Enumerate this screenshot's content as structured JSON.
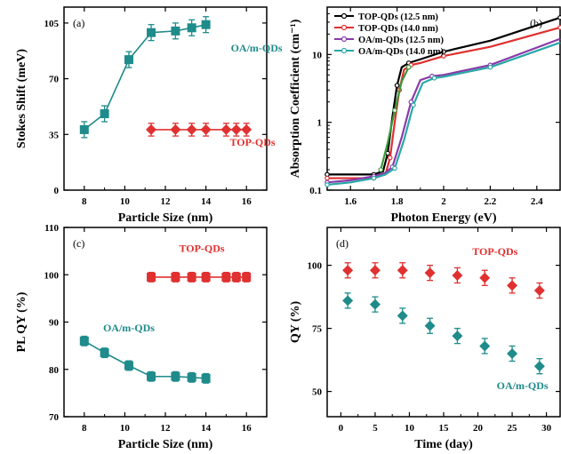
{
  "colors": {
    "red": "#e03030",
    "teal": "#1f8b8b",
    "black": "#000000",
    "green": "#3a9a3a",
    "purple": "#8a3aa8",
    "cyan": "#2aa7a7"
  },
  "chart_data": [
    {
      "id": "a",
      "type": "scatter",
      "panel_label": "(a)",
      "xlabel": "Particle Size (nm)",
      "ylabel": "Stokes Shift (meV)",
      "xlim": [
        7,
        17
      ],
      "ylim": [
        0,
        115
      ],
      "xticks": [
        8,
        10,
        12,
        14,
        16
      ],
      "yticks": [
        0,
        35,
        70,
        105
      ],
      "series": [
        {
          "name": "OA/m-QDs",
          "color": "teal",
          "marker": "square",
          "connected": true,
          "x": [
            8,
            9,
            10.2,
            11.3,
            12.5,
            13.3,
            14
          ],
          "y": [
            38,
            48,
            82,
            99,
            100,
            102,
            104
          ],
          "err": [
            5,
            5,
            5,
            5,
            5,
            5,
            5
          ]
        },
        {
          "name": "TOP-QDs",
          "color": "red",
          "marker": "diamond",
          "connected": true,
          "x": [
            11.3,
            12.5,
            13.3,
            14,
            15,
            15.5,
            16
          ],
          "y": [
            38,
            38,
            38,
            38,
            38,
            38,
            38
          ],
          "err": [
            4,
            4,
            4,
            4,
            4,
            4,
            4
          ]
        }
      ],
      "annotations": [
        {
          "text": "OA/m-QDs",
          "color": "teal",
          "x": 16.5,
          "y": 87
        },
        {
          "text": "TOP-QDs",
          "color": "red",
          "x": 16.3,
          "y": 28
        }
      ]
    },
    {
      "id": "b",
      "type": "line",
      "panel_label": "(b)",
      "xlabel": "Photon Energy (eV)",
      "ylabel": "Absorption Coefficient (cm⁻¹)",
      "xlim": [
        1.5,
        2.5
      ],
      "ylim": [
        0.1,
        50
      ],
      "log_y": true,
      "xticks": [
        1.6,
        1.8,
        2.0,
        2.2,
        2.4
      ],
      "yticks": [
        0.1,
        1,
        10
      ],
      "legend_position": "top-left",
      "series": [
        {
          "name": "TOP-QDs (12.5 nm)",
          "color": "black",
          "x": [
            1.5,
            1.6,
            1.7,
            1.74,
            1.76,
            1.78,
            1.8,
            1.82,
            1.85,
            1.9,
            2.0,
            2.2,
            2.5
          ],
          "y": [
            0.17,
            0.17,
            0.17,
            0.19,
            0.35,
            1.2,
            3.5,
            6.5,
            7.5,
            8.5,
            11,
            16,
            35
          ]
        },
        {
          "name": "TOP-QDs (14.0 nm)",
          "color": "red",
          "x": [
            1.5,
            1.6,
            1.7,
            1.75,
            1.77,
            1.79,
            1.81,
            1.83,
            1.86,
            1.9,
            2.0,
            2.2,
            2.5
          ],
          "y": [
            0.15,
            0.15,
            0.15,
            0.17,
            0.3,
            1.0,
            3.0,
            6.0,
            7.0,
            7.5,
            9.5,
            13,
            25
          ]
        },
        {
          "name": "OA/m-QDs (12.5 nm)",
          "color": "purple",
          "x": [
            1.5,
            1.6,
            1.7,
            1.75,
            1.78,
            1.82,
            1.86,
            1.9,
            1.95,
            2.0,
            2.2,
            2.5
          ],
          "y": [
            0.13,
            0.14,
            0.16,
            0.18,
            0.22,
            0.6,
            2.0,
            4.2,
            4.8,
            5.0,
            7.0,
            17
          ]
        },
        {
          "name": "OA/m-QDs (14.0 nm)",
          "color": "cyan",
          "x": [
            1.5,
            1.6,
            1.7,
            1.75,
            1.79,
            1.83,
            1.87,
            1.91,
            1.96,
            2.0,
            2.2,
            2.5
          ],
          "y": [
            0.12,
            0.13,
            0.15,
            0.17,
            0.21,
            0.55,
            1.8,
            3.8,
            4.5,
            4.7,
            6.5,
            15
          ]
        },
        {
          "name": "",
          "color": "green",
          "x": [
            1.73,
            1.76,
            1.79,
            1.82,
            1.85
          ],
          "y": [
            0.2,
            0.5,
            1.5,
            4.0,
            6.5
          ]
        }
      ]
    },
    {
      "id": "c",
      "type": "scatter",
      "panel_label": "(c)",
      "xlabel": "Particle Size (nm)",
      "ylabel": "PL QY (%)",
      "xlim": [
        7,
        17
      ],
      "ylim": [
        70,
        110
      ],
      "xticks": [
        8,
        10,
        12,
        14,
        16
      ],
      "yticks": [
        70,
        80,
        90,
        100,
        110
      ],
      "series": [
        {
          "name": "TOP-QDs",
          "color": "red",
          "marker": "square",
          "connected": true,
          "x": [
            11.3,
            12.5,
            13.3,
            14,
            15,
            15.5,
            16
          ],
          "y": [
            99.5,
            99.5,
            99.5,
            99.5,
            99.5,
            99.5,
            99.5
          ],
          "err": [
            1,
            1,
            1,
            1,
            1,
            1,
            1
          ]
        },
        {
          "name": "OA/m-QDs",
          "color": "teal",
          "marker": "square",
          "connected": true,
          "x": [
            8,
            9,
            10.2,
            11.3,
            12.5,
            13.3,
            14
          ],
          "y": [
            86,
            83.5,
            80.8,
            78.5,
            78.5,
            78.3,
            78.1
          ],
          "err": [
            1,
            1,
            1,
            1,
            1,
            1,
            1
          ]
        }
      ],
      "annotations": [
        {
          "text": "TOP-QDs",
          "color": "red",
          "x": 13.8,
          "y": 104.8
        },
        {
          "text": "OA/m-QDs",
          "color": "teal",
          "x": 10.2,
          "y": 88
        }
      ]
    },
    {
      "id": "d",
      "type": "scatter",
      "panel_label": "(d)",
      "xlabel": "Time (day)",
      "ylabel": "QY (%)",
      "xlim": [
        -2,
        32
      ],
      "ylim": [
        40,
        115
      ],
      "xticks": [
        0,
        5,
        10,
        15,
        20,
        25,
        30
      ],
      "yticks": [
        50,
        75,
        100
      ],
      "series": [
        {
          "name": "TOP-QDs",
          "color": "red",
          "marker": "diamond",
          "connected": false,
          "x": [
            1,
            5,
            9,
            13,
            17,
            21,
            25,
            29
          ],
          "y": [
            98,
            98,
            98,
            97,
            96,
            95,
            92,
            90
          ],
          "err": [
            3,
            3,
            3,
            3,
            3,
            3,
            3,
            3
          ]
        },
        {
          "name": "OA/m-QDs",
          "color": "teal",
          "marker": "diamond",
          "connected": false,
          "x": [
            1,
            5,
            9,
            13,
            17,
            21,
            25,
            29
          ],
          "y": [
            86,
            84.5,
            80,
            76,
            72,
            68,
            65,
            60
          ],
          "err": [
            3,
            3,
            3,
            3,
            3,
            3,
            3,
            3
          ]
        }
      ],
      "annotations": [
        {
          "text": "TOP-QDs",
          "color": "red",
          "x": 22.5,
          "y": 104
        },
        {
          "text": "OA/m-QDs",
          "color": "teal",
          "x": 26.5,
          "y": 51
        }
      ]
    }
  ]
}
